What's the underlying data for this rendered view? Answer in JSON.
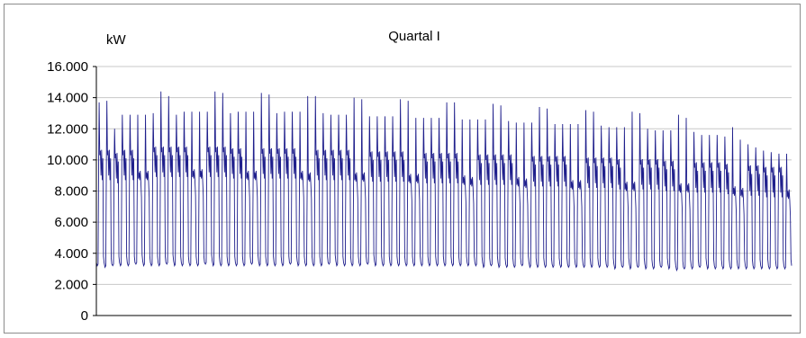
{
  "chart_data": {
    "type": "line",
    "title": "Quartal I",
    "ylabel": "kW",
    "xlabel": "",
    "ylim": [
      0,
      16000
    ],
    "yticks": [
      "0",
      "2.000",
      "4.000",
      "6.000",
      "8.000",
      "10.000",
      "12.000",
      "14.000",
      "16.000"
    ],
    "ytick_values": [
      0,
      2000,
      4000,
      6000,
      8000,
      10000,
      12000,
      14000,
      16000
    ],
    "grid": true,
    "legend": "none",
    "series": [
      {
        "color": "#1f1f8c",
        "daily_cycles": 90,
        "daily_base_kw": [
          3200,
          3100,
          3200,
          3200,
          3200,
          3300,
          3200,
          3200,
          3200,
          3300,
          3200,
          3200,
          3200,
          3200,
          3300,
          3200,
          3200,
          3200,
          3200,
          3200,
          3300,
          3200,
          3200,
          3200,
          3200,
          3300,
          3200,
          3200,
          3200,
          3200,
          3300,
          3200,
          3200,
          3200,
          3200,
          3300,
          3200,
          3200,
          3200,
          3200,
          3200,
          3200,
          3200,
          3200,
          3200,
          3200,
          3200,
          3200,
          3200,
          3200,
          3100,
          3200,
          3100,
          3100,
          3100,
          3200,
          3100,
          3100,
          3100,
          3100,
          3100,
          3100,
          3100,
          3100,
          3100,
          3100,
          3100,
          3000,
          3100,
          3000,
          3100,
          3000,
          3000,
          3100,
          3000,
          2900,
          3000,
          3000,
          3100,
          3000,
          3000,
          3000,
          3000,
          3000,
          3000,
          3000,
          3000,
          3000,
          3000,
          3000
        ],
        "daily_peak_kw": [
          13700,
          13800,
          12000,
          12900,
          12900,
          12900,
          12900,
          13000,
          14400,
          14100,
          12900,
          13100,
          13100,
          13100,
          13100,
          14400,
          14300,
          13000,
          13100,
          13100,
          13100,
          14300,
          14200,
          13000,
          13100,
          13100,
          13100,
          14100,
          14100,
          13000,
          12900,
          12900,
          12900,
          14000,
          13900,
          12800,
          12800,
          12800,
          12800,
          13900,
          13800,
          12700,
          12700,
          12700,
          12700,
          13700,
          13700,
          12600,
          12600,
          12600,
          12600,
          13600,
          13500,
          12500,
          12400,
          12400,
          12400,
          13400,
          13300,
          12300,
          12300,
          12300,
          12300,
          13200,
          13100,
          12200,
          12100,
          12100,
          12100,
          13100,
          13000,
          12000,
          11900,
          11900,
          11900,
          12900,
          12700,
          11800,
          11600,
          11600,
          11600,
          11500,
          12100,
          11300,
          11000,
          10800,
          10600,
          10500,
          10400,
          10400
        ],
        "daily_plateau_kw": [
          10500,
          10500,
          10300,
          10500,
          10500,
          10600,
          10600,
          10700,
          10700,
          10700,
          10700,
          10700,
          10700,
          10700,
          10700,
          10700,
          10700,
          10600,
          10600,
          10600,
          10600,
          10600,
          10600,
          10600,
          10600,
          10600,
          10600,
          10500,
          10500,
          10500,
          10500,
          10500,
          10500,
          10500,
          10500,
          10400,
          10400,
          10400,
          10400,
          10400,
          10400,
          10400,
          10300,
          10300,
          10300,
          10300,
          10300,
          10300,
          10200,
          10200,
          10200,
          10200,
          10200,
          10200,
          10200,
          10100,
          10100,
          10100,
          10100,
          10100,
          10100,
          10000,
          10000,
          10000,
          10000,
          10000,
          10000,
          9900,
          9900,
          9900,
          9900,
          9900,
          9900,
          9800,
          9800,
          9800,
          9800,
          9700,
          9700,
          9700,
          9700,
          9600,
          9600,
          9500,
          9500,
          9500,
          9400,
          9400,
          9400,
          9400
        ]
      }
    ]
  }
}
